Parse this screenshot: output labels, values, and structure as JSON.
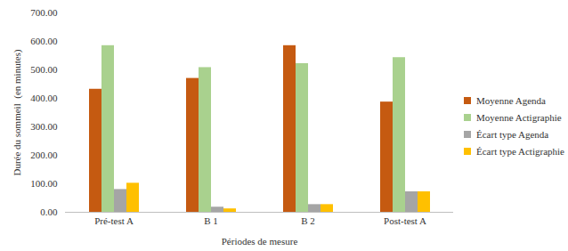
{
  "chart_data": {
    "type": "bar",
    "categories": [
      "Pré-test A",
      "B 1",
      "B 2",
      "Post-test A"
    ],
    "series": [
      {
        "name": "Moyenne Agenda",
        "color": "#c55a11",
        "values": [
          432,
          470,
          585,
          387
        ]
      },
      {
        "name": "Moyenne Actigraphie",
        "color": "#a9d18e",
        "values": [
          585,
          508,
          522,
          543
        ]
      },
      {
        "name": "Écart type Agenda",
        "color": "#a5a5a5",
        "values": [
          80,
          18,
          27,
          72
        ]
      },
      {
        "name": "Écart type Actigraphie",
        "color": "#ffc000",
        "values": [
          102,
          12,
          27,
          72
        ]
      }
    ],
    "x_label": "Périodes de mesure",
    "y_label": "Durée du sommeil  (en minutes)",
    "ylim": [
      0,
      700
    ],
    "yticks": [
      {
        "value": 0,
        "label": "0.00"
      },
      {
        "value": 100,
        "label": "100.00"
      },
      {
        "value": 200,
        "label": "200.00"
      },
      {
        "value": 300,
        "label": "300.00"
      },
      {
        "value": 400,
        "label": "400.00"
      },
      {
        "value": 500,
        "label": "500.00"
      },
      {
        "value": 600,
        "label": "600.00"
      },
      {
        "value": 700,
        "label": "700.00"
      }
    ],
    "grid": false,
    "legend": "right"
  }
}
